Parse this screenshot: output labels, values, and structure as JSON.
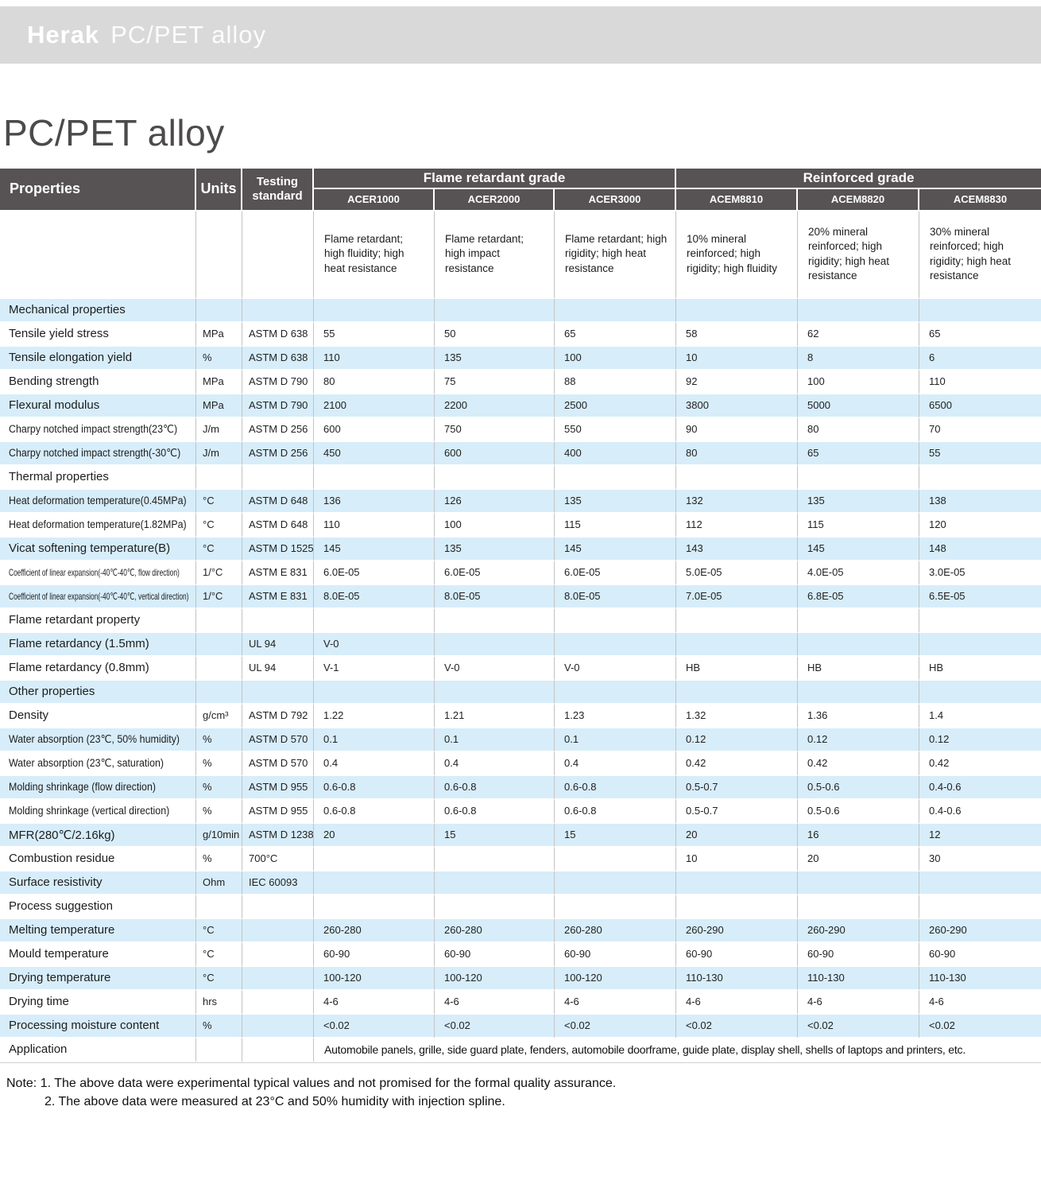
{
  "banner": {
    "logo": "Herak",
    "product": "PC/PET alloy"
  },
  "page_title": "PC/PET alloy",
  "colors": {
    "header_bg": "#575354",
    "row_blue": "#d7edfa",
    "banner_bg": "#d9d9d9",
    "grid": "#c3c2c2",
    "title_text": "#4c4a4b"
  },
  "table": {
    "headers": {
      "properties": "Properties",
      "units": "Units",
      "testing": "Testing standard"
    },
    "groups": [
      {
        "label": "Flame retardant grade"
      },
      {
        "label": "Reinforced grade"
      }
    ],
    "models": [
      {
        "name": "ACER1000",
        "description": "Flame retardant; high fluidity; high heat resistance"
      },
      {
        "name": "ACER2000",
        "description": "Flame retardant; high impact resistance"
      },
      {
        "name": "ACER3000",
        "description": "Flame retardant; high rigidity; high heat resistance"
      },
      {
        "name": "ACEM8810",
        "description": "10% mineral reinforced; high rigidity; high fluidity"
      },
      {
        "name": "ACEM8820",
        "description": "20% mineral reinforced; high rigidity; high heat resistance"
      },
      {
        "name": "ACEM8830",
        "description": "30% mineral reinforced; high rigidity; high heat resistance"
      }
    ],
    "rows": [
      {
        "type": "section",
        "label": "Mechanical properties"
      },
      {
        "type": "data",
        "label": "Tensile yield stress",
        "unit": "MPa",
        "standard": "ASTM D 638",
        "values": [
          "55",
          "50",
          "65",
          "58",
          "62",
          "65"
        ]
      },
      {
        "type": "data",
        "label": "Tensile elongation yield",
        "unit": "%",
        "standard": "ASTM D 638",
        "values": [
          "110",
          "135",
          "100",
          "10",
          "8",
          "6"
        ]
      },
      {
        "type": "data",
        "label": "Bending strength",
        "unit": "MPa",
        "standard": "ASTM D 790",
        "values": [
          "80",
          "75",
          "88",
          "92",
          "100",
          "110"
        ]
      },
      {
        "type": "data",
        "label": "Flexural modulus",
        "unit": "MPa",
        "standard": "ASTM D 790",
        "values": [
          "2100",
          "2200",
          "2500",
          "3800",
          "5000",
          "6500"
        ]
      },
      {
        "type": "data",
        "label": "Charpy notched impact strength(23℃)",
        "unit": "J/m",
        "standard": "ASTM D 256",
        "values": [
          "600",
          "750",
          "550",
          "90",
          "80",
          "70"
        ]
      },
      {
        "type": "data",
        "label": "Charpy notched impact strength(-30℃)",
        "unit": "J/m",
        "standard": "ASTM D 256",
        "values": [
          "450",
          "600",
          "400",
          "80",
          "65",
          "55"
        ]
      },
      {
        "type": "section",
        "label": "Thermal properties"
      },
      {
        "type": "data",
        "label": "Heat deformation temperature(0.45MPa)",
        "unit": "°C",
        "standard": "ASTM D 648",
        "values": [
          "136",
          "126",
          "135",
          "132",
          "135",
          "138"
        ]
      },
      {
        "type": "data",
        "label": "Heat deformation temperature(1.82MPa)",
        "unit": "°C",
        "standard": "ASTM D 648",
        "values": [
          "110",
          "100",
          "115",
          "112",
          "115",
          "120"
        ]
      },
      {
        "type": "data",
        "label": "Vicat softening temperature(B)",
        "unit": "°C",
        "standard": "ASTM D 1525",
        "values": [
          "145",
          "135",
          "145",
          "143",
          "145",
          "148"
        ]
      },
      {
        "type": "data",
        "label": "Coefficient of linear expansion(-40℃-40℃, flow direction)",
        "unit": "1/°C",
        "standard": "ASTM E 831",
        "values": [
          "6.0E-05",
          "6.0E-05",
          "6.0E-05",
          "5.0E-05",
          "4.0E-05",
          "3.0E-05"
        ]
      },
      {
        "type": "data",
        "label": "Coefficient of linear expansion(-40℃-40℃, vertical direction)",
        "unit": "1/°C",
        "standard": "ASTM E 831",
        "values": [
          "8.0E-05",
          "8.0E-05",
          "8.0E-05",
          "7.0E-05",
          "6.8E-05",
          "6.5E-05"
        ]
      },
      {
        "type": "section",
        "label": "Flame retardant property"
      },
      {
        "type": "data",
        "label": "Flame retardancy (1.5mm)",
        "unit": "",
        "standard": "UL 94",
        "values": [
          "V-0",
          "",
          "",
          "",
          "",
          ""
        ]
      },
      {
        "type": "data",
        "label": "Flame retardancy (0.8mm)",
        "unit": "",
        "standard": "UL 94",
        "values": [
          "V-1",
          "V-0",
          "V-0",
          "HB",
          "HB",
          "HB"
        ]
      },
      {
        "type": "section",
        "label": "Other properties"
      },
      {
        "type": "data",
        "label": "Density",
        "unit": "g/cm³",
        "standard": "ASTM D 792",
        "values": [
          "1.22",
          "1.21",
          "1.23",
          "1.32",
          "1.36",
          "1.4"
        ]
      },
      {
        "type": "data",
        "label": "Water absorption (23℃, 50% humidity)",
        "unit": "%",
        "standard": "ASTM D 570",
        "values": [
          "0.1",
          "0.1",
          "0.1",
          "0.12",
          "0.12",
          "0.12"
        ]
      },
      {
        "type": "data",
        "label": "Water absorption (23℃, saturation)",
        "unit": "%",
        "standard": "ASTM D 570",
        "values": [
          "0.4",
          "0.4",
          "0.4",
          "0.42",
          "0.42",
          "0.42"
        ]
      },
      {
        "type": "data",
        "label": "Molding shrinkage (flow direction)",
        "unit": "%",
        "standard": "ASTM D 955",
        "values": [
          "0.6-0.8",
          "0.6-0.8",
          "0.6-0.8",
          "0.5-0.7",
          "0.5-0.6",
          "0.4-0.6"
        ]
      },
      {
        "type": "data",
        "label": "Molding shrinkage (vertical direction)",
        "unit": "%",
        "standard": "ASTM D 955",
        "values": [
          "0.6-0.8",
          "0.6-0.8",
          "0.6-0.8",
          "0.5-0.7",
          "0.5-0.6",
          "0.4-0.6"
        ]
      },
      {
        "type": "data",
        "label": "MFR(280℃/2.16kg)",
        "unit": "g/10min",
        "standard": "ASTM D 1238",
        "values": [
          "20",
          "15",
          "15",
          "20",
          "16",
          "12"
        ]
      },
      {
        "type": "data",
        "label": "Combustion residue",
        "unit": "%",
        "standard": "700°C",
        "values": [
          "",
          "",
          "",
          "10",
          "20",
          "30"
        ]
      },
      {
        "type": "data",
        "label": "Surface resistivity",
        "unit": "Ohm",
        "standard": "IEC 60093",
        "values": [
          "",
          "",
          "",
          "",
          "",
          ""
        ]
      },
      {
        "type": "section",
        "label": "Process suggestion"
      },
      {
        "type": "data",
        "label": "Melting temperature",
        "unit": "°C",
        "standard": "",
        "values": [
          "260-280",
          "260-280",
          "260-280",
          "260-290",
          "260-290",
          "260-290"
        ]
      },
      {
        "type": "data",
        "label": "Mould temperature",
        "unit": "°C",
        "standard": "",
        "values": [
          "60-90",
          "60-90",
          "60-90",
          "60-90",
          "60-90",
          "60-90"
        ]
      },
      {
        "type": "data",
        "label": "Drying temperature",
        "unit": "°C",
        "standard": "",
        "values": [
          "100-120",
          "100-120",
          "100-120",
          "110-130",
          "110-130",
          "110-130"
        ]
      },
      {
        "type": "data",
        "label": "Drying time",
        "unit": "hrs",
        "standard": "",
        "values": [
          "4-6",
          "4-6",
          "4-6",
          "4-6",
          "4-6",
          "4-6"
        ]
      },
      {
        "type": "data",
        "label": "Processing moisture content",
        "unit": "%",
        "standard": "",
        "values": [
          "<0.02",
          "<0.02",
          "<0.02",
          "<0.02",
          "<0.02",
          "<0.02"
        ]
      },
      {
        "type": "span",
        "label": "Application",
        "unit": "",
        "standard": "",
        "text": "Automobile panels, grille, side guard plate, fenders, automobile doorframe, guide plate, display shell, shells of laptops and printers, etc."
      }
    ]
  },
  "notes": [
    "Note: 1. The above data were experimental typical values and not promised for the formal quality assurance.",
    "2. The above data were measured at 23°C and 50% humidity with injection spline."
  ]
}
